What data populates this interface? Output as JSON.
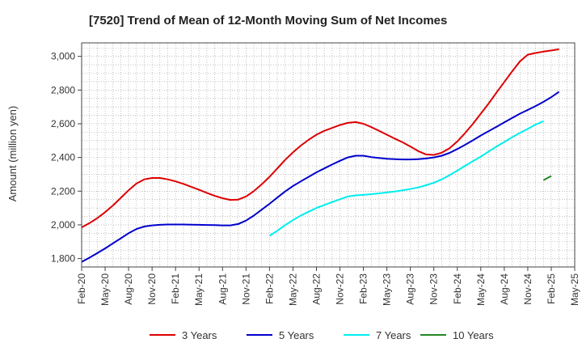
{
  "chart_data": {
    "type": "line",
    "title": "[7520]  Trend of Mean of 12-Month Moving Sum of Net Incomes",
    "ylabel": "Amount (million yen)",
    "xlabel": "",
    "x_ticks": [
      "Feb-20",
      "May-20",
      "Aug-20",
      "Nov-20",
      "Feb-21",
      "May-21",
      "Aug-21",
      "Nov-21",
      "Feb-22",
      "May-22",
      "Aug-22",
      "Nov-22",
      "Feb-23",
      "May-23",
      "Aug-23",
      "Nov-23",
      "Feb-24",
      "May-24",
      "Aug-24",
      "Nov-24",
      "Feb-25",
      "May-25"
    ],
    "y_ticks": [
      1800,
      2000,
      2200,
      2400,
      2600,
      2800,
      3000
    ],
    "y_tick_labels": [
      "1,800",
      "2,000",
      "2,200",
      "2,400",
      "2,600",
      "2,800",
      "3,000"
    ],
    "ylim": [
      1750,
      3080
    ],
    "x_range_months": [
      "Feb-20",
      "May-25"
    ],
    "grid": true,
    "legend_position": "bottom",
    "series": [
      {
        "name": "3 Years",
        "color": "#dd0000",
        "start": "Feb-20",
        "values": [
          1985,
          2010,
          2040,
          2075,
          2115,
          2160,
          2205,
          2245,
          2270,
          2278,
          2278,
          2270,
          2258,
          2243,
          2226,
          2208,
          2190,
          2172,
          2158,
          2148,
          2150,
          2168,
          2200,
          2240,
          2285,
          2335,
          2385,
          2430,
          2470,
          2505,
          2535,
          2558,
          2575,
          2592,
          2605,
          2610,
          2600,
          2580,
          2558,
          2535,
          2512,
          2490,
          2465,
          2438,
          2418,
          2415,
          2428,
          2455,
          2495,
          2545,
          2600,
          2660,
          2720,
          2785,
          2848,
          2910,
          2970,
          3010,
          3020,
          3028,
          3035,
          3042
        ]
      },
      {
        "name": "5 Years",
        "color": "#0000cc",
        "start": "Feb-20",
        "values": [
          1780,
          1805,
          1832,
          1860,
          1890,
          1920,
          1950,
          1975,
          1990,
          1997,
          2000,
          2002,
          2002,
          2002,
          2001,
          2000,
          1999,
          1998,
          1997,
          1997,
          2005,
          2025,
          2055,
          2090,
          2125,
          2162,
          2198,
          2230,
          2258,
          2285,
          2312,
          2335,
          2358,
          2380,
          2400,
          2410,
          2410,
          2402,
          2397,
          2392,
          2390,
          2388,
          2388,
          2390,
          2394,
          2400,
          2410,
          2427,
          2450,
          2475,
          2502,
          2530,
          2556,
          2582,
          2608,
          2634,
          2660,
          2682,
          2705,
          2730,
          2758,
          2790
        ]
      },
      {
        "name": "7 Years",
        "color": "#00eeee",
        "start": "Feb-22",
        "values": [
          1935,
          1965,
          1998,
          2028,
          2055,
          2078,
          2100,
          2118,
          2135,
          2152,
          2168,
          2175,
          2178,
          2182,
          2187,
          2192,
          2198,
          2205,
          2213,
          2222,
          2235,
          2250,
          2270,
          2295,
          2322,
          2350,
          2378,
          2405,
          2435,
          2465,
          2492,
          2520,
          2545,
          2570,
          2595,
          2615
        ]
      },
      {
        "name": "10 Years",
        "color": "#228822",
        "start": "Jan-25",
        "values": [
          2265,
          2290
        ]
      }
    ]
  }
}
